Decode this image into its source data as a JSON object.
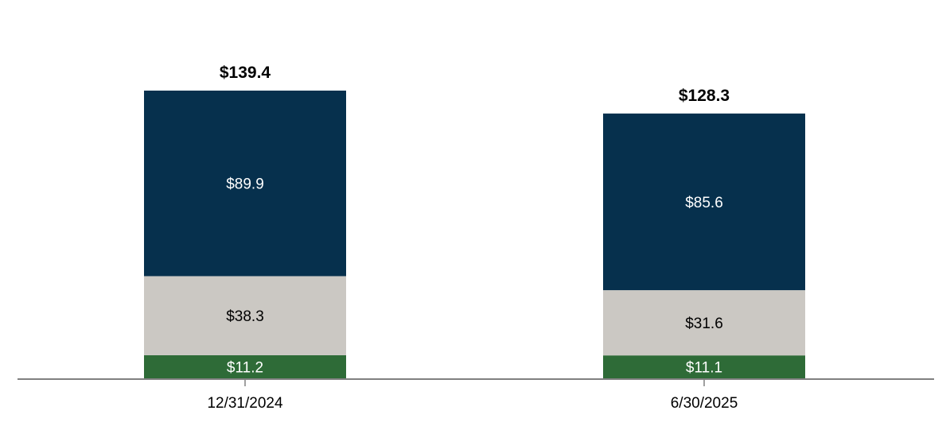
{
  "chart_data": {
    "type": "bar",
    "stacked": true,
    "categories": [
      "12/31/2024",
      "6/30/2025"
    ],
    "series": [
      {
        "values": [
          11.2,
          11.1
        ],
        "color": "#2e6b37",
        "label_color": "#ffffff"
      },
      {
        "values": [
          38.3,
          31.6
        ],
        "color": "#cbc8c3",
        "label_color": "#000000"
      },
      {
        "values": [
          89.9,
          85.6
        ],
        "color": "#06304d",
        "label_color": "#ffffff"
      }
    ],
    "segment_labels": [
      [
        "$11.2",
        "$11.1"
      ],
      [
        "$38.3",
        "$31.6"
      ],
      [
        "$89.9",
        "$85.6"
      ]
    ],
    "totals": [
      139.4,
      128.3
    ],
    "total_labels": [
      "$139.4",
      "$128.3"
    ],
    "title": "",
    "xlabel": "",
    "ylabel": "",
    "ylim": [
      0,
      139.4
    ],
    "grid": false,
    "legend": "none",
    "axis_color": "#808080"
  }
}
